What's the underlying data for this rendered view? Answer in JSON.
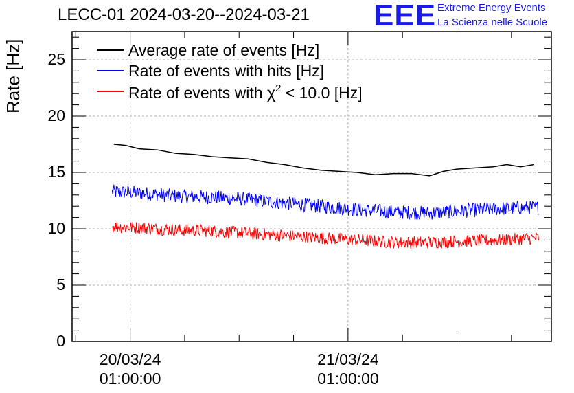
{
  "chart_data": {
    "type": "line",
    "title": "LECC-01 2024-03-20--2024-03-21",
    "ylabel": "Rate [Hz]",
    "xlabel": "",
    "ylim": [
      0,
      27.5
    ],
    "yticks": [
      0,
      5,
      10,
      15,
      20,
      25
    ],
    "grid": true,
    "legend_position": "top-left",
    "x_tick_labels": [
      {
        "date": "20/03/24",
        "time": "01:00:00",
        "hour": 1
      },
      {
        "date": "21/03/24",
        "time": "01:00:00",
        "hour": 25
      }
    ],
    "x_range_hours": [
      -5.4,
      47.4
    ],
    "series": [
      {
        "name": "Average rate of events [Hz]",
        "color": "#000000",
        "noise": 0,
        "x": [
          -0.8,
          0.5,
          2,
          4,
          6,
          8,
          10,
          12,
          14,
          16,
          18,
          20,
          22,
          24,
          26,
          28,
          30,
          32,
          34,
          35.5,
          37,
          39,
          41,
          42.5,
          44,
          45.5
        ],
        "values": [
          17.5,
          17.4,
          17.1,
          17.0,
          16.7,
          16.6,
          16.4,
          16.3,
          16.2,
          15.9,
          15.7,
          15.4,
          15.2,
          15.1,
          15.0,
          14.8,
          14.9,
          14.9,
          14.7,
          15.1,
          15.3,
          15.4,
          15.5,
          15.7,
          15.5,
          15.7
        ]
      },
      {
        "name": "Rate of events with hits [Hz]",
        "color": "#0000ff",
        "noise": 0.45,
        "x": [
          -1.0,
          2,
          6,
          10,
          14,
          18,
          22,
          26,
          30,
          34,
          38,
          42,
          46
        ],
        "values": [
          13.3,
          13.2,
          12.9,
          12.8,
          12.6,
          12.3,
          12.0,
          11.7,
          11.5,
          11.4,
          11.6,
          11.8,
          11.9
        ]
      },
      {
        "name": "Rate of events with χ² < 10.0 [Hz]",
        "color": "#ff0000",
        "noise": 0.4,
        "x": [
          -1.0,
          2,
          6,
          10,
          14,
          18,
          22,
          26,
          30,
          34,
          38,
          42,
          46
        ],
        "values": [
          10.2,
          10.1,
          9.9,
          9.8,
          9.6,
          9.4,
          9.2,
          9.0,
          8.8,
          8.8,
          8.9,
          9.0,
          9.2
        ]
      }
    ]
  },
  "legend": [
    {
      "label": "Average rate of events [Hz]",
      "color": "#000000"
    },
    {
      "label": "Rate of events with hits [Hz]",
      "color": "#0000ff"
    },
    {
      "label_prefix": "Rate of events with ",
      "symbol": "χ",
      "superscript": "2",
      "label_suffix": " < 10.0 [Hz]",
      "color": "#ff0000"
    }
  ],
  "branding": {
    "logo": "EEE",
    "line1": "Extreme Energy Events",
    "line2": "La Scienza nelle Scuole",
    "color": "#1a1ae6"
  }
}
